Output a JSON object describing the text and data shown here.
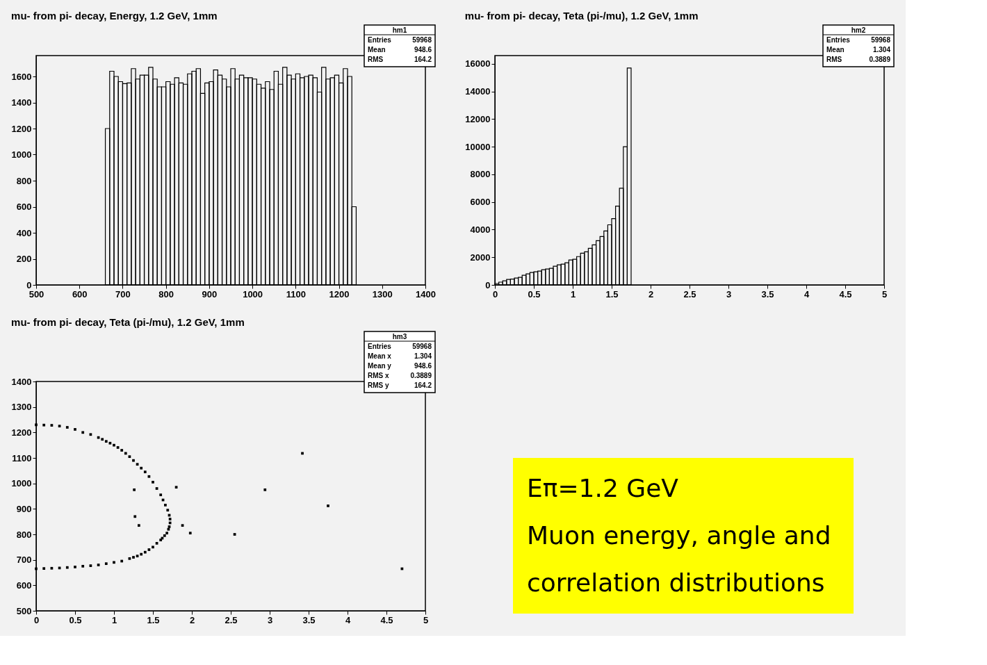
{
  "chart_data": [
    {
      "type": "histogram",
      "title": "mu- from pi- decay, Energy, 1.2 GeV, 1mm",
      "color": "#000000",
      "bins": [
        660,
        670,
        680,
        690,
        700,
        710,
        720,
        730,
        740,
        750,
        760,
        770,
        780,
        790,
        800,
        810,
        820,
        830,
        840,
        850,
        860,
        870,
        880,
        890,
        900,
        910,
        920,
        930,
        940,
        950,
        960,
        970,
        980,
        990,
        1000,
        1010,
        1020,
        1030,
        1040,
        1050,
        1060,
        1070,
        1080,
        1090,
        1100,
        1110,
        1120,
        1130,
        1140,
        1150,
        1160,
        1170,
        1180,
        1190,
        1200,
        1210,
        1220,
        1230,
        1240
      ],
      "values": [
        1200,
        1640,
        1600,
        1560,
        1545,
        1550,
        1660,
        1580,
        1610,
        1610,
        1670,
        1580,
        1520,
        1520,
        1560,
        1540,
        1590,
        1550,
        1540,
        1620,
        1640,
        1660,
        1470,
        1550,
        1560,
        1650,
        1610,
        1580,
        1520,
        1660,
        1580,
        1610,
        1590,
        1590,
        1580,
        1540,
        1510,
        1560,
        1500,
        1640,
        1540,
        1670,
        1610,
        1580,
        1620,
        1590,
        1600,
        1610,
        1590,
        1480,
        1670,
        1580,
        1590,
        1610,
        1550,
        1660,
        1600,
        600
      ],
      "xlim": [
        500,
        1400
      ],
      "xticks": [
        500,
        600,
        700,
        800,
        900,
        1000,
        1100,
        1200,
        1300,
        1400
      ],
      "ylim": [
        0,
        1760
      ],
      "yticks": [
        0,
        200,
        400,
        600,
        800,
        1000,
        1200,
        1400,
        1600
      ],
      "annotations": [
        "hm1",
        "Entries 59968",
        "Mean 948.6",
        "RMS 164.2"
      ]
    },
    {
      "type": "histogram",
      "title": "mu- from pi- decay, Teta (pi-/mu), 1.2 GeV, 1mm",
      "color": "#000000",
      "bins": [
        0,
        0.05,
        0.1,
        0.15,
        0.2,
        0.25,
        0.3,
        0.35,
        0.4,
        0.45,
        0.5,
        0.55,
        0.6,
        0.65,
        0.7,
        0.75,
        0.8,
        0.85,
        0.9,
        0.95,
        1.0,
        1.05,
        1.1,
        1.15,
        1.2,
        1.25,
        1.3,
        1.35,
        1.4,
        1.45,
        1.5,
        1.55,
        1.6,
        1.65,
        1.7,
        1.75
      ],
      "values": [
        100,
        200,
        300,
        400,
        420,
        500,
        550,
        700,
        800,
        900,
        950,
        1000,
        1100,
        1150,
        1200,
        1350,
        1450,
        1500,
        1600,
        1800,
        1850,
        2050,
        2300,
        2400,
        2650,
        2900,
        3200,
        3500,
        3900,
        4350,
        4800,
        5700,
        7000,
        10000,
        15700
      ],
      "xlim": [
        0,
        5
      ],
      "xticks": [
        0,
        0.5,
        1,
        1.5,
        2,
        2.5,
        3,
        3.5,
        4,
        4.5,
        5
      ],
      "ylim": [
        0,
        16600
      ],
      "yticks": [
        0,
        2000,
        4000,
        6000,
        8000,
        10000,
        12000,
        14000,
        16000
      ],
      "annotations": [
        "hm2",
        "Entries 59968",
        "Mean 1.304",
        "RMS 0.3889"
      ]
    },
    {
      "type": "scatter",
      "title": "mu- from pi- decay, Teta (pi-/mu), 1.2 GeV, 1mm",
      "color": "#000000",
      "marker": "square",
      "x": [
        0,
        0.1,
        0.2,
        0.3,
        0.4,
        0.5,
        0.6,
        0.7,
        0.8,
        0.85,
        0.9,
        0.95,
        1.0,
        1.05,
        1.1,
        1.15,
        1.2,
        1.25,
        1.3,
        1.35,
        1.4,
        1.45,
        1.5,
        1.55,
        1.6,
        1.63,
        1.66,
        1.69,
        1.71,
        1.72,
        1.72,
        1.71,
        1.7,
        1.68,
        1.65,
        1.62,
        1.6,
        1.55,
        1.5,
        1.45,
        1.4,
        1.35,
        1.3,
        1.25,
        1.2,
        1.1,
        1.0,
        0.9,
        0.8,
        0.7,
        0.6,
        0.5,
        0.4,
        0.3,
        0.2,
        0.1,
        0,
        3.42,
        2.94,
        3.75,
        2.55,
        4.7,
        1.98,
        1.88,
        1.27,
        1.32,
        1.26,
        1.8
      ],
      "values": [
        1230,
        1229,
        1228,
        1225,
        1220,
        1212,
        1200,
        1192,
        1180,
        1173,
        1165,
        1158,
        1150,
        1141,
        1130,
        1118,
        1105,
        1090,
        1075,
        1060,
        1045,
        1027,
        1005,
        980,
        955,
        935,
        915,
        895,
        875,
        860,
        845,
        830,
        820,
        805,
        795,
        785,
        778,
        765,
        750,
        740,
        730,
        722,
        715,
        710,
        705,
        695,
        690,
        685,
        680,
        677,
        675,
        672,
        670,
        668,
        667,
        666,
        665,
        1118,
        975,
        912,
        800,
        665,
        805,
        835,
        870,
        835,
        975,
        985
      ],
      "xlim": [
        0,
        5
      ],
      "xticks": [
        0,
        0.5,
        1,
        1.5,
        2,
        2.5,
        3,
        3.5,
        4,
        4.5,
        5
      ],
      "ylim": [
        500,
        1400
      ],
      "yticks": [
        500,
        600,
        700,
        800,
        900,
        1000,
        1100,
        1200,
        1300,
        1400
      ],
      "annotations": [
        "hm3",
        "Entries 59968",
        "Mean x 1.304",
        "Mean y 948.6",
        "RMS x 0.3889",
        "RMS y 164.2"
      ]
    },
    {
      "type": "other",
      "color": "#ffff00",
      "annotations": [
        "Eπ=1.2 GeV",
        "Muon energy, angle and",
        "correlation distributions"
      ]
    }
  ]
}
